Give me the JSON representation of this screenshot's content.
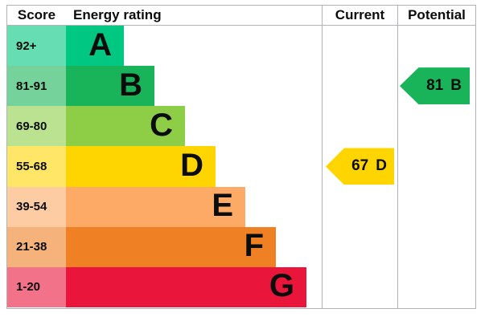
{
  "header": {
    "score": "Score",
    "energy_rating": "Energy rating",
    "current": "Current",
    "potential": "Potential"
  },
  "chart_data": {
    "type": "bar",
    "title": "Energy rating",
    "description": "EPC energy efficiency rating graph with bands A-G and current/potential indicators",
    "columns": [
      "Score",
      "Energy rating",
      "Current",
      "Potential"
    ],
    "bands": [
      {
        "letter": "A",
        "score_range": "92+",
        "color": "#00c781",
        "score_bg": "#66ddb3"
      },
      {
        "letter": "B",
        "score_range": "81-91",
        "color": "#19b459",
        "score_bg": "#75d29b"
      },
      {
        "letter": "C",
        "score_range": "69-80",
        "color": "#8dce46",
        "score_bg": "#bbe290"
      },
      {
        "letter": "D",
        "score_range": "55-68",
        "color": "#ffd500",
        "score_bg": "#ffe666"
      },
      {
        "letter": "E",
        "score_range": "39-54",
        "color": "#fcaa65",
        "score_bg": "#fdcca3"
      },
      {
        "letter": "F",
        "score_range": "21-38",
        "color": "#ef8023",
        "score_bg": "#f5b37b"
      },
      {
        "letter": "G",
        "score_range": "1-20",
        "color": "#e9153b",
        "score_bg": "#f27389"
      }
    ],
    "current": {
      "score": "67",
      "band": "D",
      "band_index": 3,
      "color": "#ffd500"
    },
    "potential": {
      "score": "81",
      "band": "B",
      "band_index": 1,
      "color": "#19b459"
    }
  },
  "colors": {
    "border": "#b1b4b6",
    "text": "#0b0c0c",
    "background": "#ffffff"
  }
}
